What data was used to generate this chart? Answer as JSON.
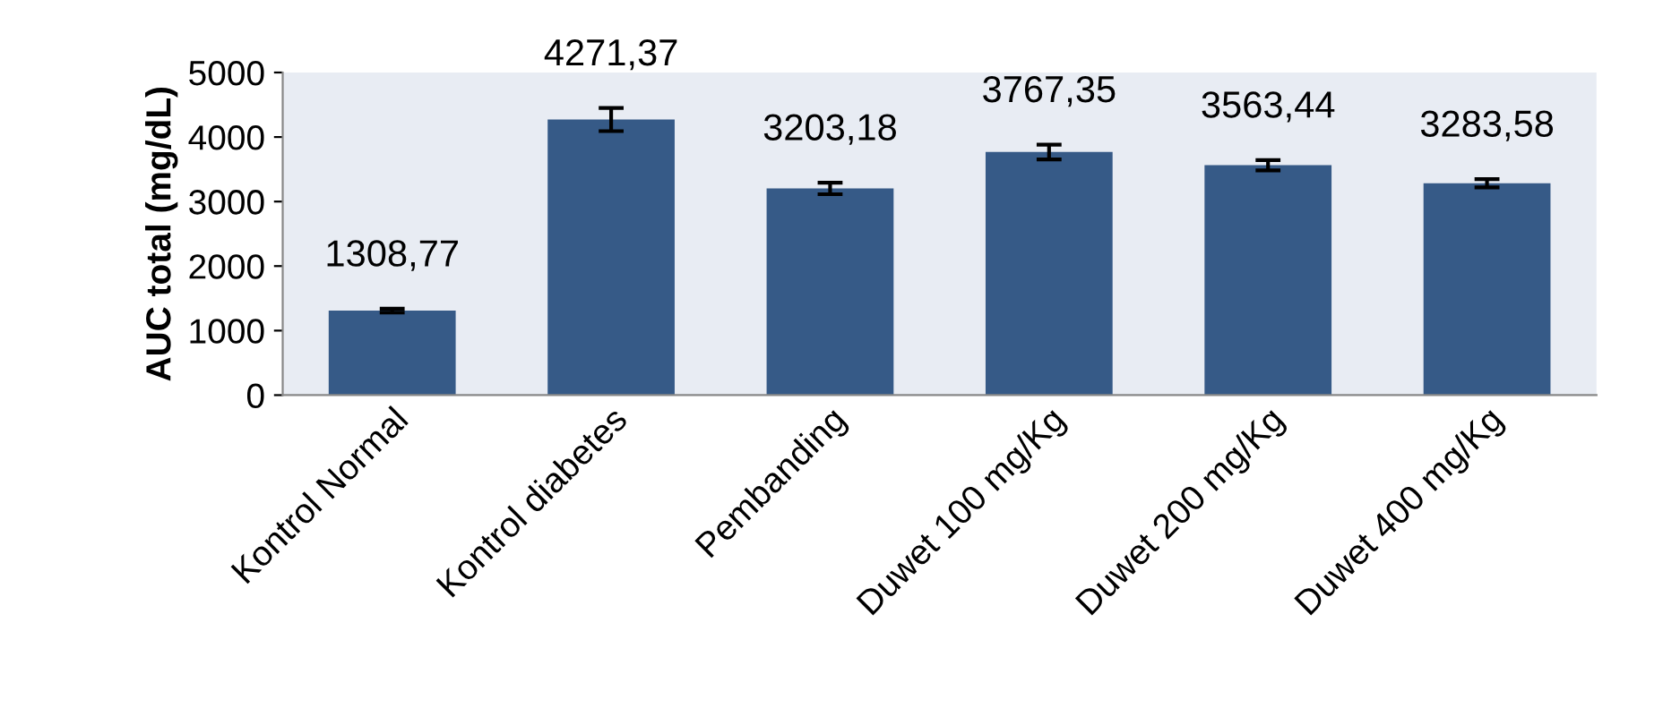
{
  "chart_data": {
    "type": "bar",
    "ylabel": "AUC total (mg/dL)",
    "categories": [
      "Kontrol Normal",
      "Kontrol diabetes",
      "Pembanding",
      "Duwet 100 mg/Kg",
      "Duwet 200 mg/Kg",
      "Duwet 400 mg/Kg"
    ],
    "values": [
      1308.77,
      4271.37,
      3203.18,
      3767.35,
      3563.44,
      3283.58
    ],
    "value_labels": [
      "1308,77",
      "4271,37",
      "3203,18",
      "3767,35",
      "3563,44",
      "3283,58"
    ],
    "errors": [
      30,
      180,
      90,
      115,
      80,
      65
    ],
    "color": "#365a87",
    "ylim": [
      0,
      5000
    ],
    "yticks": [
      0,
      1000,
      2000,
      3000,
      4000,
      5000
    ],
    "grid": false,
    "legend": false
  }
}
